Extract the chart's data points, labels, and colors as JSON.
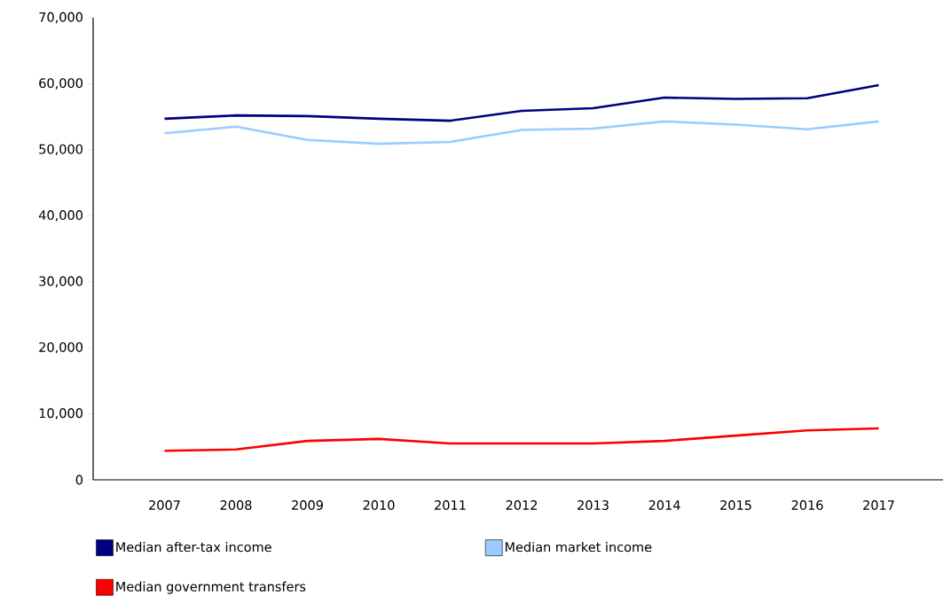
{
  "chart_data": {
    "type": "line",
    "categories": [
      "2007",
      "2008",
      "2009",
      "2010",
      "2011",
      "2012",
      "2013",
      "2014",
      "2015",
      "2016",
      "2017"
    ],
    "series": [
      {
        "name": "Median after-tax income",
        "color": "#000080",
        "values": [
          54700,
          55200,
          55100,
          54700,
          54400,
          55900,
          56300,
          57900,
          57700,
          57800,
          59800
        ]
      },
      {
        "name": "Median market income",
        "color": "#99ccff",
        "values": [
          52500,
          53500,
          51500,
          50900,
          51200,
          53000,
          53200,
          54300,
          53800,
          53100,
          54300
        ]
      },
      {
        "name": "Median government transfers",
        "color": "#ff0000",
        "values": [
          4400,
          4600,
          5900,
          6200,
          5500,
          5500,
          5500,
          5900,
          6700,
          7500,
          7800
        ]
      }
    ],
    "ylim": [
      0,
      70000
    ],
    "yticks": [
      {
        "value": 0,
        "label": "0"
      },
      {
        "value": 10000,
        "label": "10,000"
      },
      {
        "value": 20000,
        "label": "20,000"
      },
      {
        "value": 30000,
        "label": "30,000"
      },
      {
        "value": 40000,
        "label": "40,000"
      },
      {
        "value": 50000,
        "label": "50,000"
      },
      {
        "value": 60000,
        "label": "60,000"
      },
      {
        "value": 70000,
        "label": "70,000"
      }
    ],
    "grid": false,
    "legend": "bottom",
    "marker": "none",
    "line_style": "solid"
  }
}
